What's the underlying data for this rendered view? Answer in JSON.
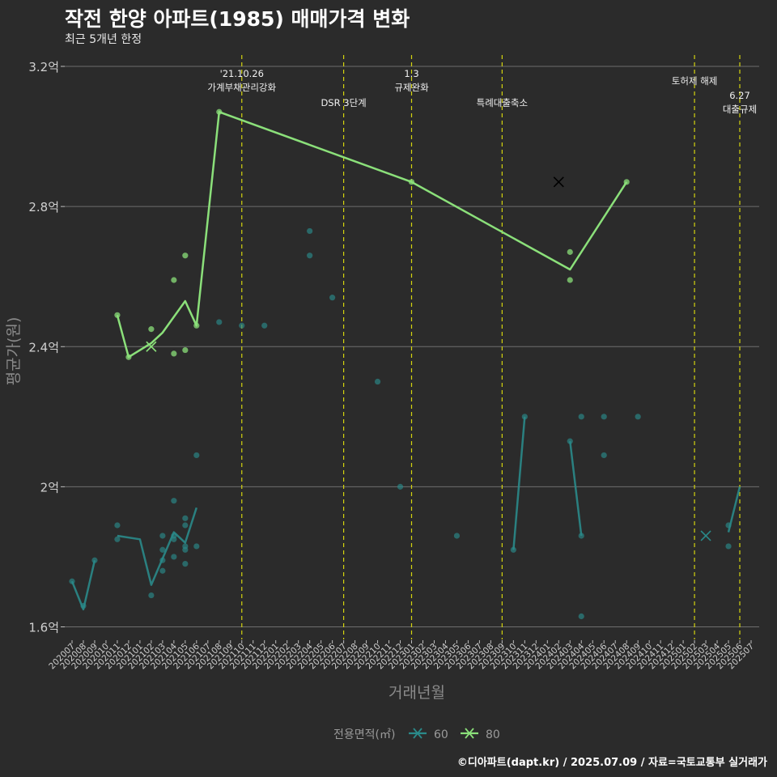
{
  "title": "작전 한양 아파트(1985) 매매가격 변화",
  "subtitle": "최근 5개년 한정",
  "caption": "©디아파트(dapt.kr) / 2025.07.09 / 자료=국토교통부 실거래가",
  "colors": {
    "s60": "#2a8a8a",
    "s80": "#8be07a",
    "vline": "#d4d40e",
    "grid": "#6e6e6e",
    "bg": "#2b2b2b"
  },
  "chart_data": {
    "type": "line",
    "title": "작전 한양 아파트(1985) 매매가격 변화",
    "subtitle": "최근 5개년 한정",
    "xlabel": "거래년월",
    "ylabel": "평균가(원)",
    "ylim": [
      1.57,
      3.22
    ],
    "yticks": [
      1.6,
      2.0,
      2.4,
      2.8,
      3.2
    ],
    "ytick_labels": [
      "1.6억",
      "2억",
      "2.4억",
      "2.8억",
      "3.2억"
    ],
    "x_categories": [
      "202007",
      "202008",
      "202009",
      "202010",
      "202011",
      "202012",
      "202101",
      "202102",
      "202103",
      "202104",
      "202105",
      "202106",
      "202107",
      "202108",
      "202109",
      "202110",
      "202111",
      "202112",
      "202201",
      "202202",
      "202203",
      "202204",
      "202205",
      "202206",
      "202207",
      "202208",
      "202209",
      "202210",
      "202211",
      "202212",
      "202301",
      "202302",
      "202303",
      "202304",
      "202305",
      "202306",
      "202307",
      "202308",
      "202309",
      "202310",
      "202311",
      "202312",
      "202401",
      "202402",
      "202403",
      "202404",
      "202405",
      "202406",
      "202407",
      "202408",
      "202409",
      "202410",
      "202411",
      "202412",
      "202501",
      "202502",
      "202503",
      "202504",
      "202505",
      "202506",
      "202507"
    ],
    "legend_title": "전용면적(㎡)",
    "legend_position": "bottom",
    "grid": true,
    "series": [
      {
        "name": "60",
        "color": "#2a8a8a",
        "line": [
          {
            "segment": [
              [
                "202007",
                1.73
              ],
              [
                "202008",
                1.65
              ],
              [
                "202009",
                1.79
              ]
            ]
          },
          {
            "segment": [
              [
                "202011",
                1.86
              ],
              [
                "202101",
                1.85
              ],
              [
                "202102",
                1.72
              ],
              [
                "202104",
                1.87
              ],
              [
                "202105",
                1.84
              ],
              [
                "202106",
                1.94
              ]
            ]
          },
          {
            "segment": [
              [
                "202310",
                1.82
              ],
              [
                "202311",
                2.2
              ]
            ]
          },
          {
            "segment": [
              [
                "202403",
                2.13
              ],
              [
                "202404",
                1.86
              ]
            ]
          },
          {
            "segment": [
              [
                "202505",
                1.87
              ],
              [
                "202506",
                2.0
              ]
            ]
          }
        ],
        "points": [
          [
            "202007",
            1.73
          ],
          [
            "202008",
            1.66
          ],
          [
            "202009",
            1.79
          ],
          [
            "202011",
            1.89
          ],
          [
            "202011",
            1.85
          ],
          [
            "202102",
            1.69
          ],
          [
            "202103",
            1.86
          ],
          [
            "202103",
            1.79
          ],
          [
            "202103",
            1.76
          ],
          [
            "202103",
            1.82
          ],
          [
            "202104",
            1.96
          ],
          [
            "202104",
            1.85
          ],
          [
            "202104",
            1.86
          ],
          [
            "202104",
            1.8
          ],
          [
            "202105",
            1.91
          ],
          [
            "202105",
            1.89
          ],
          [
            "202105",
            1.83
          ],
          [
            "202105",
            1.82
          ],
          [
            "202105",
            1.78
          ],
          [
            "202106",
            2.09
          ],
          [
            "202106",
            1.83
          ],
          [
            "202108",
            2.47
          ],
          [
            "202110",
            2.46
          ],
          [
            "202112",
            2.46
          ],
          [
            "202204",
            2.73
          ],
          [
            "202204",
            2.66
          ],
          [
            "202206",
            2.54
          ],
          [
            "202210",
            2.3
          ],
          [
            "202212",
            2.0
          ],
          [
            "202305",
            1.86
          ],
          [
            "202310",
            1.82
          ],
          [
            "202311",
            2.2
          ],
          [
            "202403",
            2.13
          ],
          [
            "202404",
            2.2
          ],
          [
            "202404",
            1.86
          ],
          [
            "202404",
            1.63
          ],
          [
            "202406",
            2.2
          ],
          [
            "202406",
            2.09
          ],
          [
            "202409",
            2.2
          ],
          [
            "202505",
            1.89
          ],
          [
            "202505",
            1.83
          ]
        ],
        "avg_marker": [
          [
            "202503",
            1.86
          ]
        ]
      },
      {
        "name": "80",
        "color": "#8be07a",
        "line": [
          {
            "segment": [
              [
                "202011",
                2.49
              ],
              [
                "202012",
                2.37
              ],
              [
                "202102",
                2.41
              ],
              [
                "202103",
                2.44
              ],
              [
                "202105",
                2.53
              ],
              [
                "202106",
                2.46
              ],
              [
                "202108",
                3.07
              ],
              [
                "202301",
                2.87
              ],
              [
                "202403",
                2.62
              ],
              [
                "202408",
                2.87
              ]
            ]
          }
        ],
        "points": [
          [
            "202011",
            2.49
          ],
          [
            "202012",
            2.37
          ],
          [
            "202102",
            2.45
          ],
          [
            "202104",
            2.59
          ],
          [
            "202104",
            2.38
          ],
          [
            "202105",
            2.66
          ],
          [
            "202105",
            2.39
          ],
          [
            "202106",
            2.46
          ],
          [
            "202108",
            3.07
          ],
          [
            "202301",
            2.87
          ],
          [
            "202403",
            2.67
          ],
          [
            "202403",
            2.59
          ],
          [
            "202408",
            2.87
          ]
        ],
        "avg_marker": [
          [
            "202102",
            2.4
          ],
          [
            "202402",
            2.87
          ]
        ]
      }
    ],
    "annotations": [
      {
        "x": "202110",
        "lines": [
          "'21.10.26",
          "가계부채관리강화"
        ],
        "level": "top"
      },
      {
        "x": "202207",
        "lines": [
          "DSR 3단계"
        ],
        "level": "low"
      },
      {
        "x": "202301",
        "lines": [
          "1.3",
          "규제완화"
        ],
        "level": "top"
      },
      {
        "x": "202309",
        "lines": [
          "특례대출축소"
        ],
        "level": "low"
      },
      {
        "x": "202502",
        "lines": [
          "토허제 해제"
        ],
        "level": "mid"
      },
      {
        "x": "202506",
        "lines": [
          "6.27",
          "대출규제"
        ],
        "level": "low2"
      }
    ]
  }
}
